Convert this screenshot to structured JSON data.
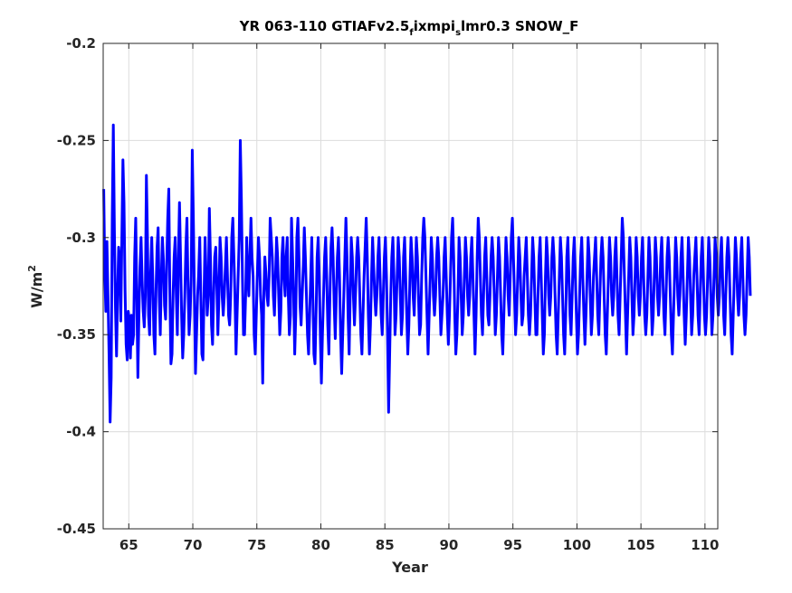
{
  "colors": {
    "series": "#0000ff",
    "grid": "#dcdcdc",
    "axis": "#262626",
    "background": "#ffffff"
  },
  "chart_data": {
    "type": "line",
    "title": {
      "part1": "YR 063-110 GTIAFv2.5",
      "sub1": "f",
      "part2": "ixmpi",
      "sub2": "s",
      "part3": "lmr0.3 SNOW_F"
    },
    "xlabel": "Year",
    "ylabel": {
      "base": "W/m",
      "sup": "2"
    },
    "xlim": [
      63,
      111
    ],
    "ylim": [
      -0.45,
      -0.2
    ],
    "xticks": [
      65,
      70,
      75,
      80,
      85,
      90,
      95,
      100,
      105,
      110
    ],
    "xtick_labels": [
      "65",
      "70",
      "75",
      "80",
      "85",
      "90",
      "95",
      "100",
      "105",
      "110"
    ],
    "yticks": [
      -0.45,
      -0.4,
      -0.35,
      -0.3,
      -0.25,
      -0.2
    ],
    "ytick_labels": [
      "-0.45",
      "-0.4",
      "-0.35",
      "-0.3",
      "-0.25",
      "-0.2"
    ],
    "grid": true,
    "series": [
      {
        "x_start": 63.0417,
        "x_step": 0.083333,
        "values": [
          -0.275,
          -0.318,
          -0.338,
          -0.302,
          -0.33,
          -0.36,
          -0.395,
          -0.372,
          -0.29,
          -0.242,
          -0.296,
          -0.336,
          -0.361,
          -0.33,
          -0.305,
          -0.312,
          -0.343,
          -0.3,
          -0.26,
          -0.282,
          -0.327,
          -0.355,
          -0.363,
          -0.338,
          -0.342,
          -0.362,
          -0.34,
          -0.355,
          -0.35,
          -0.31,
          -0.29,
          -0.33,
          -0.372,
          -0.34,
          -0.315,
          -0.3,
          -0.322,
          -0.338,
          -0.346,
          -0.33,
          -0.268,
          -0.3,
          -0.34,
          -0.35,
          -0.318,
          -0.3,
          -0.322,
          -0.35,
          -0.36,
          -0.328,
          -0.305,
          -0.295,
          -0.33,
          -0.35,
          -0.32,
          -0.3,
          -0.312,
          -0.335,
          -0.342,
          -0.315,
          -0.29,
          -0.275,
          -0.33,
          -0.365,
          -0.36,
          -0.33,
          -0.31,
          -0.3,
          -0.33,
          -0.35,
          -0.31,
          -0.282,
          -0.31,
          -0.34,
          -0.362,
          -0.35,
          -0.33,
          -0.305,
          -0.29,
          -0.325,
          -0.35,
          -0.34,
          -0.32,
          -0.255,
          -0.29,
          -0.33,
          -0.37,
          -0.35,
          -0.33,
          -0.318,
          -0.3,
          -0.33,
          -0.36,
          -0.363,
          -0.33,
          -0.3,
          -0.32,
          -0.34,
          -0.33,
          -0.285,
          -0.31,
          -0.345,
          -0.355,
          -0.33,
          -0.31,
          -0.305,
          -0.325,
          -0.35,
          -0.33,
          -0.3,
          -0.31,
          -0.33,
          -0.34,
          -0.33,
          -0.315,
          -0.3,
          -0.32,
          -0.34,
          -0.345,
          -0.33,
          -0.3,
          -0.29,
          -0.31,
          -0.33,
          -0.36,
          -0.34,
          -0.32,
          -0.3,
          -0.25,
          -0.28,
          -0.32,
          -0.35,
          -0.35,
          -0.33,
          -0.3,
          -0.32,
          -0.33,
          -0.31,
          -0.29,
          -0.31,
          -0.32,
          -0.35,
          -0.36,
          -0.34,
          -0.318,
          -0.3,
          -0.31,
          -0.33,
          -0.34,
          -0.375,
          -0.33,
          -0.31,
          -0.318,
          -0.33,
          -0.335,
          -0.32,
          -0.29,
          -0.3,
          -0.31,
          -0.33,
          -0.34,
          -0.32,
          -0.3,
          -0.31,
          -0.33,
          -0.35,
          -0.338,
          -0.31,
          -0.3,
          -0.32,
          -0.33,
          -0.31,
          -0.3,
          -0.33,
          -0.35,
          -0.34,
          -0.29,
          -0.31,
          -0.33,
          -0.36,
          -0.34,
          -0.3,
          -0.29,
          -0.31,
          -0.335,
          -0.345,
          -0.33,
          -0.315,
          -0.295,
          -0.31,
          -0.33,
          -0.35,
          -0.36,
          -0.34,
          -0.32,
          -0.3,
          -0.33,
          -0.36,
          -0.365,
          -0.34,
          -0.31,
          -0.3,
          -0.32,
          -0.35,
          -0.375,
          -0.35,
          -0.33,
          -0.31,
          -0.3,
          -0.32,
          -0.345,
          -0.36,
          -0.33,
          -0.305,
          -0.295,
          -0.31,
          -0.335,
          -0.352,
          -0.33,
          -0.31,
          -0.3,
          -0.32,
          -0.35,
          -0.37,
          -0.35,
          -0.33,
          -0.31,
          -0.29,
          -0.31,
          -0.34,
          -0.36,
          -0.33,
          -0.3,
          -0.31,
          -0.33,
          -0.345,
          -0.33,
          -0.31,
          -0.3,
          -0.31,
          -0.33,
          -0.35,
          -0.36,
          -0.34,
          -0.32,
          -0.305,
          -0.29,
          -0.31,
          -0.34,
          -0.36,
          -0.345,
          -0.32,
          -0.3,
          -0.315,
          -0.33,
          -0.34,
          -0.33,
          -0.31,
          -0.3,
          -0.32,
          -0.34,
          -0.35,
          -0.33,
          -0.31,
          -0.3,
          -0.32,
          -0.35,
          -0.39,
          -0.36,
          -0.33,
          -0.31,
          -0.3,
          -0.32,
          -0.35,
          -0.34,
          -0.32,
          -0.3,
          -0.31,
          -0.33,
          -0.35,
          -0.34,
          -0.31,
          -0.3,
          -0.32,
          -0.34,
          -0.36,
          -0.345,
          -0.32,
          -0.3,
          -0.31,
          -0.33,
          -0.34,
          -0.32,
          -0.3,
          -0.31,
          -0.33,
          -0.35,
          -0.345,
          -0.32,
          -0.3,
          -0.29,
          -0.3,
          -0.32,
          -0.34,
          -0.36,
          -0.34,
          -0.32,
          -0.3,
          -0.31,
          -0.33,
          -0.34,
          -0.33,
          -0.31,
          -0.3,
          -0.31,
          -0.33,
          -0.35,
          -0.34,
          -0.33,
          -0.31,
          -0.3,
          -0.32,
          -0.34,
          -0.355,
          -0.34,
          -0.32,
          -0.3,
          -0.29,
          -0.31,
          -0.34,
          -0.36,
          -0.35,
          -0.33,
          -0.3,
          -0.31,
          -0.33,
          -0.35,
          -0.34,
          -0.32,
          -0.3,
          -0.31,
          -0.33,
          -0.34,
          -0.33,
          -0.31,
          -0.3,
          -0.32,
          -0.34,
          -0.36,
          -0.34,
          -0.31,
          -0.29,
          -0.3,
          -0.32,
          -0.34,
          -0.35,
          -0.33,
          -0.31,
          -0.3,
          -0.32,
          -0.34,
          -0.345,
          -0.33,
          -0.31,
          -0.3,
          -0.31,
          -0.33,
          -0.35,
          -0.34,
          -0.32,
          -0.3,
          -0.31,
          -0.33,
          -0.35,
          -0.36,
          -0.34,
          -0.32,
          -0.3,
          -0.31,
          -0.33,
          -0.34,
          -0.32,
          -0.3,
          -0.29,
          -0.31,
          -0.33,
          -0.35,
          -0.34,
          -0.32,
          -0.3,
          -0.31,
          -0.33,
          -0.345,
          -0.34,
          -0.32,
          -0.31,
          -0.3,
          -0.32,
          -0.34,
          -0.35,
          -0.34,
          -0.32,
          -0.3,
          -0.31,
          -0.33,
          -0.35,
          -0.35,
          -0.33,
          -0.31,
          -0.3,
          -0.32,
          -0.34,
          -0.36,
          -0.35,
          -0.32,
          -0.3,
          -0.31,
          -0.33,
          -0.34,
          -0.33,
          -0.31,
          -0.3,
          -0.31,
          -0.33,
          -0.35,
          -0.36,
          -0.34,
          -0.32,
          -0.3,
          -0.31,
          -0.33,
          -0.35,
          -0.36,
          -0.34,
          -0.31,
          -0.3,
          -0.32,
          -0.34,
          -0.35,
          -0.33,
          -0.31,
          -0.3,
          -0.32,
          -0.34,
          -0.36,
          -0.35,
          -0.33,
          -0.31,
          -0.3,
          -0.32,
          -0.34,
          -0.355,
          -0.34,
          -0.32,
          -0.3,
          -0.31,
          -0.33,
          -0.35,
          -0.34,
          -0.32,
          -0.31,
          -0.3,
          -0.32,
          -0.34,
          -0.35,
          -0.33,
          -0.31,
          -0.3,
          -0.31,
          -0.33,
          -0.35,
          -0.36,
          -0.34,
          -0.32,
          -0.3,
          -0.31,
          -0.33,
          -0.34,
          -0.33,
          -0.31,
          -0.3,
          -0.32,
          -0.34,
          -0.35,
          -0.33,
          -0.31,
          -0.29,
          -0.3,
          -0.32,
          -0.34,
          -0.36,
          -0.34,
          -0.32,
          -0.3,
          -0.31,
          -0.33,
          -0.35,
          -0.34,
          -0.32,
          -0.3,
          -0.31,
          -0.33,
          -0.34,
          -0.33,
          -0.31,
          -0.3,
          -0.32,
          -0.34,
          -0.35,
          -0.34,
          -0.32,
          -0.3,
          -0.31,
          -0.33,
          -0.35,
          -0.34,
          -0.32,
          -0.3,
          -0.31,
          -0.33,
          -0.34,
          -0.33,
          -0.31,
          -0.3,
          -0.32,
          -0.34,
          -0.35,
          -0.33,
          -0.31,
          -0.3,
          -0.31,
          -0.33,
          -0.35,
          -0.36,
          -0.34,
          -0.32,
          -0.3,
          -0.31,
          -0.33,
          -0.34,
          -0.33,
          -0.31,
          -0.3,
          -0.32,
          -0.34,
          -0.355,
          -0.34,
          -0.32,
          -0.3,
          -0.31,
          -0.33,
          -0.35,
          -0.34,
          -0.32,
          -0.31,
          -0.3,
          -0.32,
          -0.34,
          -0.35,
          -0.33,
          -0.31,
          -0.3,
          -0.32,
          -0.34,
          -0.35,
          -0.34,
          -0.32,
          -0.3,
          -0.31,
          -0.33,
          -0.35,
          -0.34,
          -0.32,
          -0.3,
          -0.31,
          -0.33,
          -0.34,
          -0.33,
          -0.31,
          -0.3,
          -0.32,
          -0.34,
          -0.35,
          -0.33,
          -0.31,
          -0.3,
          -0.31,
          -0.33,
          -0.35,
          -0.36,
          -0.34,
          -0.32,
          -0.3,
          -0.31,
          -0.33,
          -0.34,
          -0.33,
          -0.31,
          -0.3,
          -0.32,
          -0.34,
          -0.35,
          -0.34,
          -0.32,
          -0.3,
          -0.31,
          -0.33
        ]
      }
    ]
  }
}
